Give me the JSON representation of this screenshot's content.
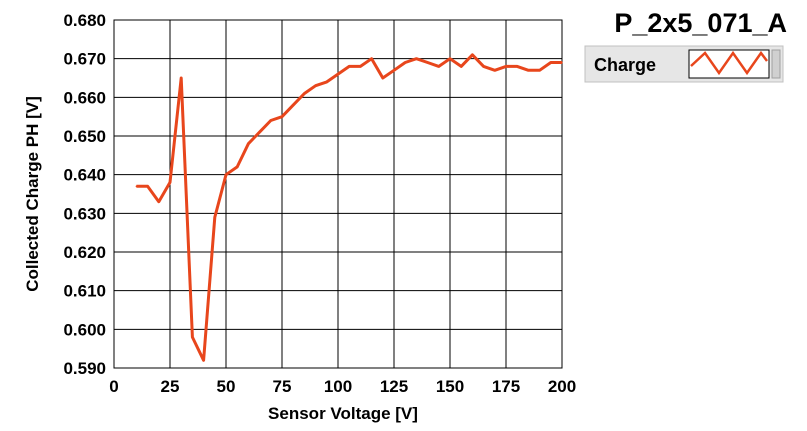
{
  "chart_data": {
    "type": "line",
    "title": "P_2x5_071_A",
    "xlabel": "Sensor Voltage [V]",
    "ylabel": "Collected Charge PH [V]",
    "xlim": [
      0,
      200
    ],
    "ylim": [
      0.59,
      0.68
    ],
    "x_ticks": [
      "0",
      "25",
      "50",
      "75",
      "100",
      "125",
      "150",
      "175",
      "200"
    ],
    "y_ticks": [
      "0.590",
      "0.600",
      "0.610",
      "0.620",
      "0.630",
      "0.640",
      "0.650",
      "0.660",
      "0.670",
      "0.680"
    ],
    "grid": true,
    "legend_position": "top-right",
    "series": [
      {
        "name": "Charge",
        "color": "#e8461c",
        "x": [
          10,
          15,
          20,
          25,
          30,
          35,
          40,
          45,
          50,
          55,
          60,
          65,
          70,
          75,
          80,
          85,
          90,
          95,
          100,
          105,
          110,
          115,
          120,
          125,
          130,
          135,
          140,
          145,
          150,
          155,
          160,
          165,
          170,
          175,
          180,
          185,
          190,
          195,
          200
        ],
        "y": [
          0.637,
          0.637,
          0.633,
          0.638,
          0.665,
          0.598,
          0.592,
          0.629,
          0.64,
          0.642,
          0.648,
          0.651,
          0.654,
          0.655,
          0.658,
          0.661,
          0.663,
          0.664,
          0.666,
          0.668,
          0.668,
          0.67,
          0.665,
          0.667,
          0.669,
          0.67,
          0.669,
          0.668,
          0.67,
          0.668,
          0.671,
          0.668,
          0.667,
          0.668,
          0.668,
          0.667,
          0.667,
          0.669,
          0.669
        ]
      }
    ]
  }
}
